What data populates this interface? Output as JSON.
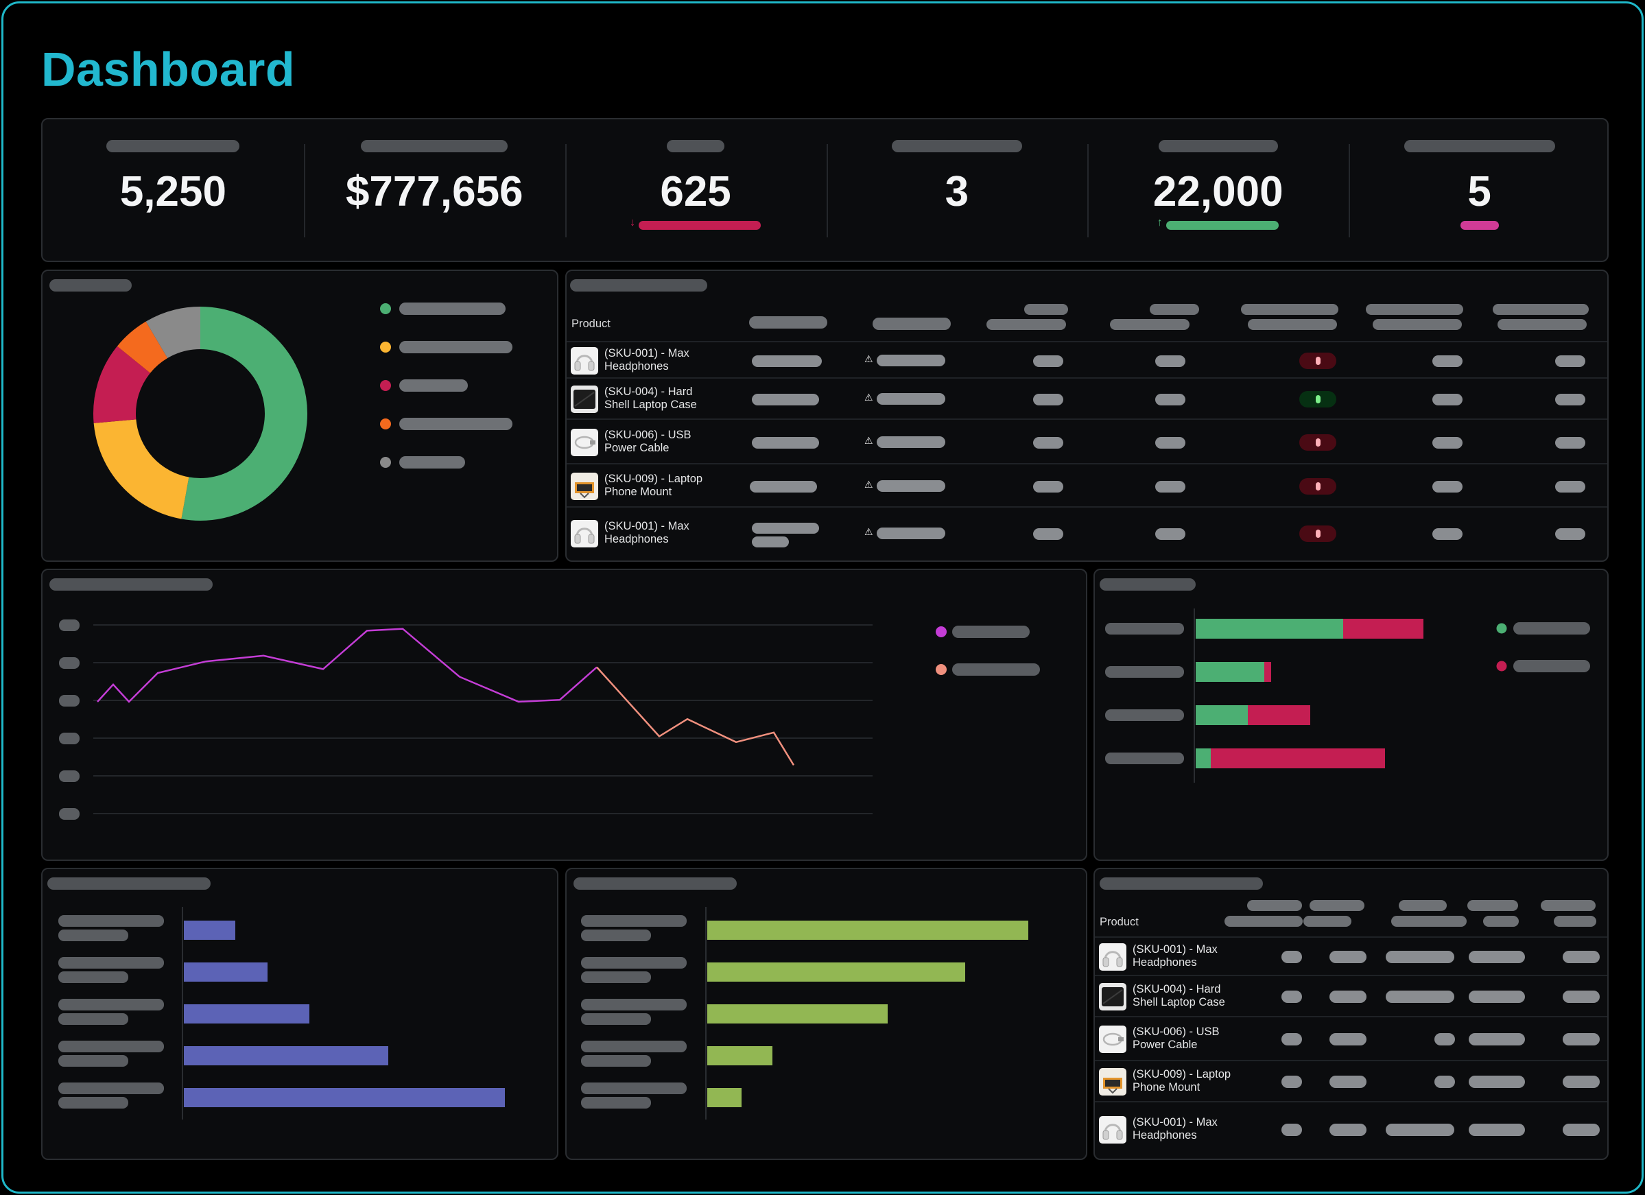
{
  "page": {
    "title": "Dashboard"
  },
  "kpis": [
    {
      "value": "5,250"
    },
    {
      "value": "$777,656"
    },
    {
      "value": "625",
      "trend": "down",
      "trend_color": "#c41e52"
    },
    {
      "value": "3"
    },
    {
      "value": "22,000",
      "trend": "up",
      "trend_color": "#4caf73"
    },
    {
      "value": "5",
      "trend_color": "#d13b96"
    }
  ],
  "donut_colors": [
    "#4caf73",
    "#fbb532",
    "#c41e52",
    "#f46a1e",
    "#8a8a8a"
  ],
  "donut_values": [
    56,
    22,
    13,
    6,
    9
  ],
  "inventory_table": {
    "product_header": "Product",
    "rows": [
      {
        "name_line1": "(SKU-001) - Max",
        "name_line2": "Headphones",
        "icon": "headphones-icon",
        "status": "red"
      },
      {
        "name_line1": "(SKU-004) - Hard",
        "name_line2": "Shell Laptop Case",
        "icon": "laptop-case-icon",
        "status": "green"
      },
      {
        "name_line1": "(SKU-006) - USB",
        "name_line2": "Power Cable",
        "icon": "usb-cable-icon",
        "status": "red"
      },
      {
        "name_line1": "(SKU-009) - Laptop",
        "name_line2": "Phone Mount",
        "icon": "phone-mount-icon",
        "status": "red"
      },
      {
        "name_line1": "(SKU-001) - Max",
        "name_line2": "Headphones",
        "icon": "headphones-icon",
        "status": "red"
      }
    ]
  },
  "line_chart": {
    "series_colors": [
      "#c43dd6",
      "#f0907e"
    ],
    "values": [
      3.0,
      3.45,
      3.0,
      3.75,
      4.05,
      4.2,
      3.85,
      4.85,
      4.9,
      3.65,
      3.0,
      3.05,
      3.9,
      2.1,
      2.55,
      1.95,
      2.2,
      1.35
    ],
    "split_index": 12,
    "ylim": [
      0,
      5
    ]
  },
  "stacked_bar": {
    "colors": [
      "#4caf73",
      "#c41e52"
    ],
    "values": [
      [
        215,
        117
      ],
      [
        100,
        10
      ],
      [
        76,
        91
      ],
      [
        22,
        254
      ]
    ]
  },
  "bar_purple": {
    "color": "#5c63b6",
    "values": [
      75,
      122,
      183,
      298,
      468
    ]
  },
  "bar_green": {
    "color": "#92b753",
    "values": [
      468,
      376,
      263,
      95,
      50
    ]
  },
  "orders_table": {
    "product_header": "Product",
    "rows": [
      {
        "name_line1": "(SKU-001) - Max",
        "name_line2": "Headphones",
        "icon": "headphones-icon"
      },
      {
        "name_line1": "(SKU-004) - Hard",
        "name_line2": "Shell Laptop Case",
        "icon": "laptop-case-icon"
      },
      {
        "name_line1": "(SKU-006) - USB",
        "name_line2": "Power Cable",
        "icon": "usb-cable-icon"
      },
      {
        "name_line1": "(SKU-009) - Laptop",
        "name_line2": "Phone Mount",
        "icon": "phone-mount-icon"
      },
      {
        "name_line1": "(SKU-001) - Max",
        "name_line2": "Headphones",
        "icon": "headphones-icon"
      }
    ]
  }
}
